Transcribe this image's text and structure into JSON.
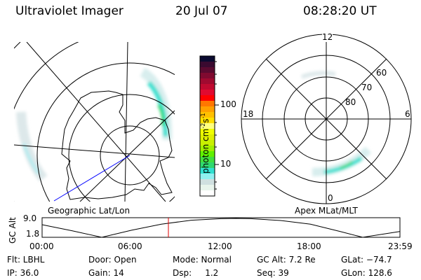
{
  "header": {
    "instrument": "Ultraviolet Imager",
    "date": "20 Jul 07",
    "time": "08:28:20 UT"
  },
  "left_plot": {
    "label": "Geographic Lat/Lon"
  },
  "right_plot": {
    "label": "Apex MLat/MLT",
    "mlt_labels": [
      "12",
      "18",
      "6",
      "0"
    ],
    "lat_labels": [
      "60",
      "70",
      "80"
    ]
  },
  "colorbar": {
    "unit_label": "photon cm",
    "unit_sup1": "-2",
    "unit_mid": "s",
    "unit_sup2": "-1",
    "ticks": [
      "100",
      "10"
    ],
    "colors": [
      "#0a0a30",
      "#3a0a30",
      "#5a0a30",
      "#800a30",
      "#a00a30",
      "#c00a30",
      "#e00a30",
      "#ff0000",
      "#ff7700",
      "#ffa000",
      "#ffc000",
      "#ffe000",
      "#ffff80",
      "#f0ff00",
      "#e0f000",
      "#c8f000",
      "#a0f000",
      "#60f000",
      "#40e040",
      "#30d870",
      "#30e0d0",
      "#90f0f0",
      "#d0e0e0",
      "#e8f4ec",
      "#ffffff"
    ]
  },
  "chart_data": {
    "type": "line",
    "title": "",
    "ylabel": "GC Alt",
    "xlabel": "",
    "ylim": [
      1.8,
      9.0
    ],
    "ytick_labels": [
      "9.0",
      "1.8"
    ],
    "xtick_labels": [
      "00:00",
      "06:00",
      "12:00",
      "18:00",
      "23:59"
    ],
    "x_hours": [
      0,
      2,
      4,
      6,
      8,
      10,
      12,
      13,
      14,
      16,
      18,
      20,
      21.5,
      23.98
    ],
    "y_re": [
      6.6,
      4.3,
      1.8,
      4.5,
      6.8,
      8.3,
      8.9,
      9.0,
      8.9,
      8.2,
      6.8,
      4.0,
      1.8,
      4.0
    ],
    "current_time_hours": 8.47,
    "current_marker_color": "#e00000"
  },
  "info": {
    "row1": [
      "Flt: LBHL",
      "Door: Open",
      "Mode: Normal",
      "GC Alt: 7.2 Re",
      "GLat: −74.7"
    ],
    "row2": [
      "IP: 36.0",
      "Gain: 14",
      "Dsp:     1.2",
      "Seq: 39",
      "GLon: 128.6"
    ]
  }
}
